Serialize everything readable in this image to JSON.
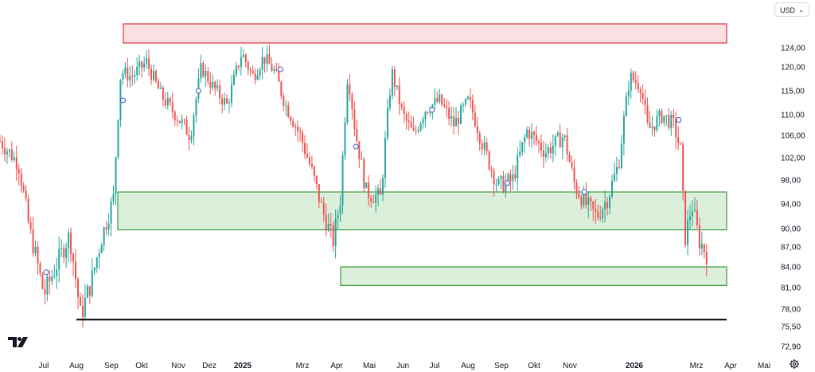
{
  "currency": "USD",
  "icons": {
    "currency_dropdown": "chevron-down-icon",
    "logo": "tradingview-logo",
    "settings": "gear-icon"
  },
  "chart_data": {
    "type": "candlestick",
    "currency": "USD",
    "y_ticks": [
      "124,00",
      "120,00",
      "115,00",
      "110,00",
      "106,00",
      "102,00",
      "98,00",
      "94,00",
      "90,00",
      "87,00",
      "84,00",
      "81,00",
      "78,00",
      "75,50",
      "72,90"
    ],
    "y_tick_values": [
      124,
      120,
      115,
      110,
      106,
      102,
      98,
      94,
      90,
      87,
      84,
      81,
      78,
      75.5,
      72.9
    ],
    "x_ticks": [
      {
        "label": "Jul",
        "bold": false
      },
      {
        "label": "Aug",
        "bold": false
      },
      {
        "label": "Sep",
        "bold": false
      },
      {
        "label": "Okt",
        "bold": false
      },
      {
        "label": "Nov",
        "bold": false
      },
      {
        "label": "Dez",
        "bold": false
      },
      {
        "label": "2025",
        "bold": true
      },
      {
        "label": "Mrz",
        "bold": false
      },
      {
        "label": "Apr",
        "bold": false
      },
      {
        "label": "Mai",
        "bold": false
      },
      {
        "label": "Jun",
        "bold": false
      },
      {
        "label": "Jul",
        "bold": false
      },
      {
        "label": "Aug",
        "bold": false
      },
      {
        "label": "Sep",
        "bold": false
      },
      {
        "label": "Okt",
        "bold": false
      },
      {
        "label": "Nov",
        "bold": false
      },
      {
        "label": "2026",
        "bold": true
      },
      {
        "label": "Mrz",
        "bold": false
      },
      {
        "label": "Apr",
        "bold": false
      },
      {
        "label": "Mai",
        "bold": false
      }
    ],
    "price_path": [
      {
        "t": 0,
        "p": 105
      },
      {
        "t": 0.025,
        "p": 101
      },
      {
        "t": 0.04,
        "p": 90
      },
      {
        "t": 0.06,
        "p": 80
      },
      {
        "t": 0.08,
        "p": 85
      },
      {
        "t": 0.095,
        "p": 89
      },
      {
        "t": 0.11,
        "p": 77
      },
      {
        "t": 0.125,
        "p": 82
      },
      {
        "t": 0.14,
        "p": 89
      },
      {
        "t": 0.155,
        "p": 95
      },
      {
        "t": 0.165,
        "p": 119
      },
      {
        "t": 0.18,
        "p": 118
      },
      {
        "t": 0.2,
        "p": 121
      },
      {
        "t": 0.22,
        "p": 114
      },
      {
        "t": 0.24,
        "p": 110
      },
      {
        "t": 0.26,
        "p": 106
      },
      {
        "t": 0.275,
        "p": 120
      },
      {
        "t": 0.29,
        "p": 116
      },
      {
        "t": 0.31,
        "p": 112
      },
      {
        "t": 0.33,
        "p": 123
      },
      {
        "t": 0.345,
        "p": 118
      },
      {
        "t": 0.36,
        "p": 122
      },
      {
        "t": 0.375,
        "p": 119
      },
      {
        "t": 0.39,
        "p": 112
      },
      {
        "t": 0.41,
        "p": 106
      },
      {
        "t": 0.425,
        "p": 100
      },
      {
        "t": 0.44,
        "p": 93
      },
      {
        "t": 0.455,
        "p": 88
      },
      {
        "t": 0.465,
        "p": 95
      },
      {
        "t": 0.475,
        "p": 119
      },
      {
        "t": 0.485,
        "p": 107
      },
      {
        "t": 0.5,
        "p": 96
      },
      {
        "t": 0.52,
        "p": 95
      },
      {
        "t": 0.535,
        "p": 119
      },
      {
        "t": 0.55,
        "p": 110
      },
      {
        "t": 0.565,
        "p": 106
      },
      {
        "t": 0.58,
        "p": 111
      },
      {
        "t": 0.6,
        "p": 113
      },
      {
        "t": 0.62,
        "p": 108
      },
      {
        "t": 0.64,
        "p": 113
      },
      {
        "t": 0.66,
        "p": 104
      },
      {
        "t": 0.68,
        "p": 97
      },
      {
        "t": 0.7,
        "p": 98
      },
      {
        "t": 0.72,
        "p": 107
      },
      {
        "t": 0.745,
        "p": 103
      },
      {
        "t": 0.77,
        "p": 106
      },
      {
        "t": 0.785,
        "p": 97
      },
      {
        "t": 0.8,
        "p": 94
      },
      {
        "t": 0.815,
        "p": 92
      },
      {
        "t": 0.83,
        "p": 95
      },
      {
        "t": 0.845,
        "p": 101
      },
      {
        "t": 0.86,
        "p": 118
      },
      {
        "t": 0.875,
        "p": 116
      },
      {
        "t": 0.885,
        "p": 107
      },
      {
        "t": 0.905,
        "p": 110
      },
      {
        "t": 0.92,
        "p": 108
      },
      {
        "t": 0.93,
        "p": 103
      },
      {
        "t": 0.935,
        "p": 88
      },
      {
        "t": 0.945,
        "p": 94
      },
      {
        "t": 0.955,
        "p": 88
      },
      {
        "t": 0.965,
        "p": 86
      }
    ],
    "zones": [
      {
        "name": "resistance-zone",
        "top": 129,
        "bottom": 125,
        "color": "#f26d7d"
      },
      {
        "name": "support-zone-upper",
        "top": 96,
        "bottom": 89.8,
        "color": "#5cb85c"
      },
      {
        "name": "support-zone-lower",
        "top": 84,
        "bottom": 81.3,
        "color": "#5cb85c"
      }
    ],
    "horizontal_line": {
      "value": 76.5,
      "color": "#000000"
    },
    "event_markers": [
      {
        "t": 0.063,
        "p": 83.2
      },
      {
        "t": 0.168,
        "p": 113
      },
      {
        "t": 0.271,
        "p": 115
      },
      {
        "t": 0.383,
        "p": 119.5
      },
      {
        "t": 0.486,
        "p": 104
      },
      {
        "t": 0.59,
        "p": 111
      },
      {
        "t": 0.693,
        "p": 97.5
      },
      {
        "t": 0.798,
        "p": 96
      },
      {
        "t": 0.927,
        "p": 109
      }
    ],
    "colors": {
      "up": "#26a69a",
      "down": "#ef5350"
    },
    "grid": false
  }
}
